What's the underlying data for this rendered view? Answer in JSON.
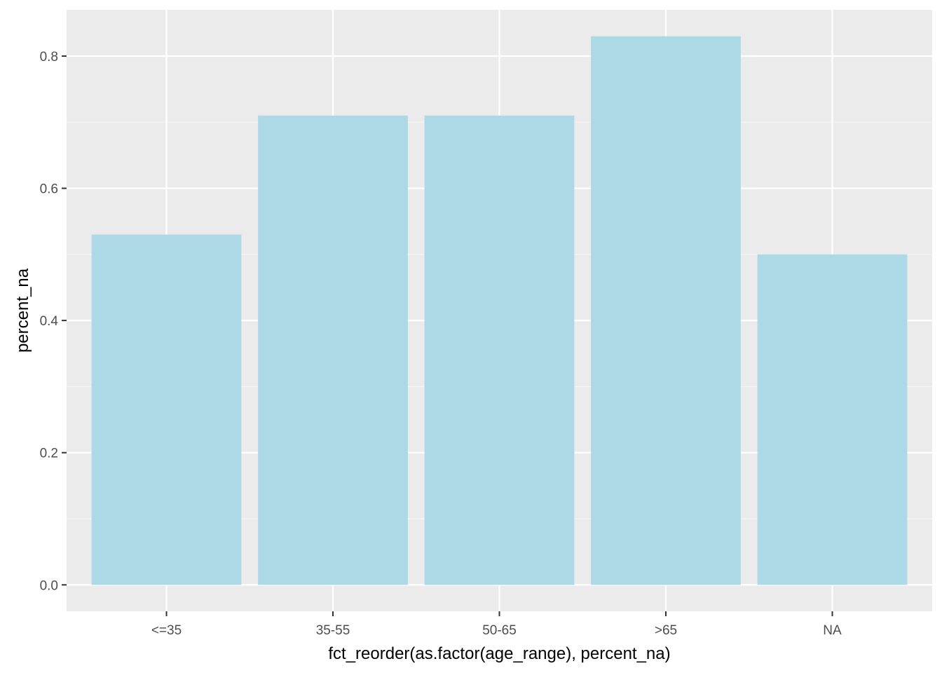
{
  "chart_data": {
    "type": "bar",
    "title": "",
    "xlabel": "fct_reorder(as.factor(age_range), percent_na)",
    "ylabel": "percent_na",
    "categories": [
      "<=35",
      "35-55",
      "50-65",
      ">65",
      "NA"
    ],
    "values": [
      0.53,
      0.71,
      0.71,
      0.83,
      0.5
    ],
    "ylim": [
      -0.04,
      0.87
    ],
    "yticks": [
      0.0,
      0.2,
      0.4,
      0.6,
      0.8
    ],
    "ytick_labels": [
      "0.0",
      "0.2",
      "0.4",
      "0.6",
      "0.8"
    ],
    "grid": true,
    "legend": "none",
    "colors": {
      "bar": "#add8e6",
      "panel": "#ebebeb",
      "grid_major": "#ffffff",
      "grid_minor": "#f5f5f5",
      "tick_text": "#4d4d4d",
      "tick_mark": "#333333"
    }
  }
}
